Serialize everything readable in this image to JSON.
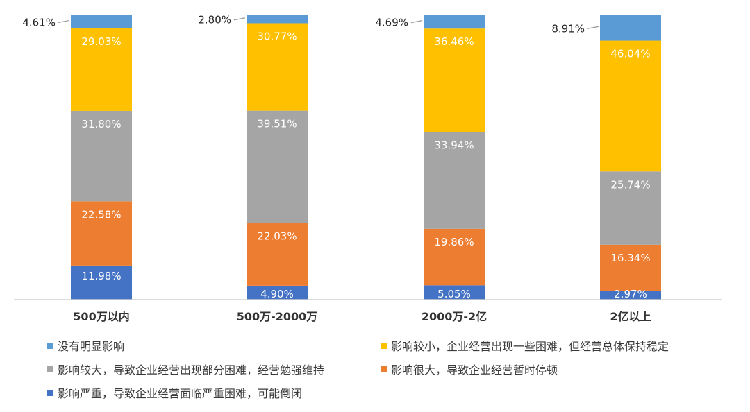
{
  "chart_data": {
    "type": "bar",
    "stacked": true,
    "percent": true,
    "categories": [
      "500万以内",
      "500万-2000万",
      "2000万-2亿",
      "2亿以上"
    ],
    "series": [
      {
        "name": "影响严重，导致企业经营面临严重困难，可能倒闭",
        "color": "#4472C4",
        "values": [
          11.98,
          4.9,
          5.05,
          2.97
        ]
      },
      {
        "name": "影响很大，导致企业经营暂时停顿",
        "color": "#ED7D31",
        "values": [
          22.58,
          22.03,
          19.86,
          16.34
        ]
      },
      {
        "name": "影响较大，导致企业经营出现部分困难，经营勉强维持",
        "color": "#A5A5A5",
        "values": [
          31.8,
          39.51,
          33.94,
          25.74
        ]
      },
      {
        "name": "影响较小，企业经营出现一些困难，但经营总体保持稳定",
        "color": "#FFC000",
        "values": [
          29.03,
          30.77,
          36.46,
          46.04
        ]
      },
      {
        "name": "没有明显影响",
        "color": "#5B9BD5",
        "values": [
          4.61,
          2.8,
          4.69,
          8.91
        ]
      }
    ],
    "data_labels": [
      [
        "11.98%",
        "22.58%",
        "31.80%",
        "29.03%",
        "4.61%"
      ],
      [
        "4.90%",
        "22.03%",
        "39.51%",
        "30.77%",
        "2.80%"
      ],
      [
        "5.05%",
        "19.86%",
        "33.94%",
        "36.46%",
        "4.69%"
      ],
      [
        "2.97%",
        "16.34%",
        "25.74%",
        "46.04%",
        "8.91%"
      ]
    ],
    "ylim": [
      0,
      100
    ],
    "grid": false,
    "legend_position": "bottom"
  },
  "legend": {
    "items": [
      {
        "label": "没有明显影响",
        "color": "#5B9BD5"
      },
      {
        "label": "影响较小，企业经营出现一些困难，但经营总体保持稳定",
        "color": "#FFC000"
      },
      {
        "label": "影响较大，导致企业经营出现部分困难，经营勉强维持",
        "color": "#A5A5A5"
      },
      {
        "label": "影响很大，导致企业经营暂时停顿",
        "color": "#ED7D31"
      },
      {
        "label": "影响严重，导致企业经营面临严重困难，可能倒闭",
        "color": "#4472C4"
      }
    ]
  }
}
